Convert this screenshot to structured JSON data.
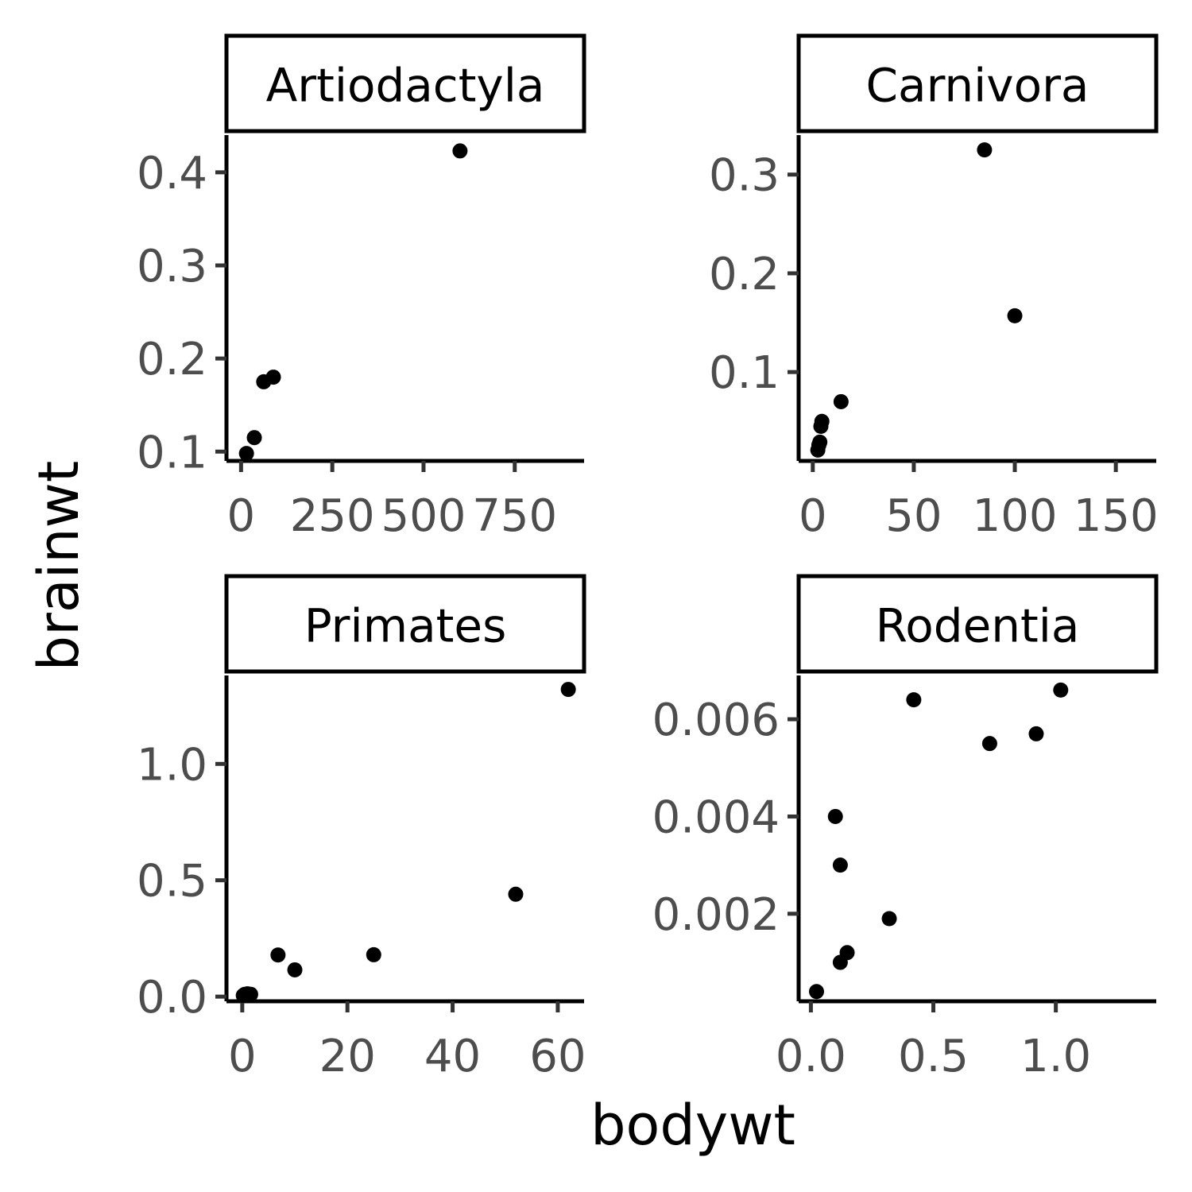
{
  "chart_data": {
    "type": "scatter",
    "xlabel": "bodywt",
    "ylabel": "brainwt",
    "facet_scales": "free",
    "grid": false,
    "panels": [
      {
        "strip": "Artiodactyla",
        "xlim": [
          -40,
          940
        ],
        "ylim": [
          0.09,
          0.44
        ],
        "x_ticks": [
          0,
          250,
          500,
          750
        ],
        "x_tick_labels": [
          "0",
          "250",
          "500",
          "750"
        ],
        "y_ticks": [
          0.1,
          0.2,
          0.3,
          0.4
        ],
        "y_tick_labels": [
          "0.1",
          "0.2",
          "0.3",
          "0.4"
        ],
        "points": [
          {
            "x": 14.8,
            "y": 0.098
          },
          {
            "x": 36.3,
            "y": 0.115
          },
          {
            "x": 62,
            "y": 0.175
          },
          {
            "x": 88.5,
            "y": 0.18
          },
          {
            "x": 600,
            "y": 0.423
          }
        ]
      },
      {
        "strip": "Carnivora",
        "xlim": [
          -7,
          170
        ],
        "ylim": [
          0.01,
          0.34
        ],
        "x_ticks": [
          0,
          50,
          100,
          150
        ],
        "x_tick_labels": [
          "0",
          "50",
          "100",
          "150"
        ],
        "y_ticks": [
          0.1,
          0.2,
          0.3
        ],
        "y_tick_labels": [
          "0.1",
          "0.2",
          "0.3"
        ],
        "points": [
          {
            "x": 2.5,
            "y": 0.021
          },
          {
            "x": 3.0,
            "y": 0.026
          },
          {
            "x": 3.5,
            "y": 0.029
          },
          {
            "x": 4.0,
            "y": 0.045
          },
          {
            "x": 4.5,
            "y": 0.05
          },
          {
            "x": 14,
            "y": 0.07
          },
          {
            "x": 85,
            "y": 0.325
          },
          {
            "x": 100,
            "y": 0.157
          }
        ]
      },
      {
        "strip": "Primates",
        "xlim": [
          -3,
          65
        ],
        "ylim": [
          -0.02,
          1.38
        ],
        "x_ticks": [
          0,
          20,
          40,
          60
        ],
        "x_tick_labels": [
          "0",
          "20",
          "40",
          "60"
        ],
        "y_ticks": [
          0.0,
          0.5,
          1.0
        ],
        "y_tick_labels": [
          "0.0",
          "0.5",
          "1.0"
        ],
        "points": [
          {
            "x": 0.2,
            "y": 0.005
          },
          {
            "x": 0.5,
            "y": 0.01
          },
          {
            "x": 1.0,
            "y": 0.012
          },
          {
            "x": 1.6,
            "y": 0.01
          },
          {
            "x": 6.8,
            "y": 0.179
          },
          {
            "x": 10,
            "y": 0.115
          },
          {
            "x": 25,
            "y": 0.18
          },
          {
            "x": 52,
            "y": 0.44
          },
          {
            "x": 62,
            "y": 1.32
          }
        ]
      },
      {
        "strip": "Rodentia",
        "xlim": [
          -0.05,
          1.41
        ],
        "ylim": [
          0.0002,
          0.0069
        ],
        "x_ticks": [
          0.0,
          0.5,
          1.0
        ],
        "x_tick_labels": [
          "0.0",
          "0.5",
          "1.0"
        ],
        "y_ticks": [
          0.002,
          0.004,
          0.006
        ],
        "y_tick_labels": [
          "0.002",
          "0.004",
          "0.006"
        ],
        "points": [
          {
            "x": 0.023,
            "y": 0.0004
          },
          {
            "x": 0.1,
            "y": 0.004
          },
          {
            "x": 0.12,
            "y": 0.003
          },
          {
            "x": 0.12,
            "y": 0.001
          },
          {
            "x": 0.148,
            "y": 0.0012
          },
          {
            "x": 0.32,
            "y": 0.0019
          },
          {
            "x": 0.42,
            "y": 0.0064
          },
          {
            "x": 0.73,
            "y": 0.0055
          },
          {
            "x": 0.92,
            "y": 0.0057
          },
          {
            "x": 1.02,
            "y": 0.0066
          }
        ]
      }
    ]
  }
}
